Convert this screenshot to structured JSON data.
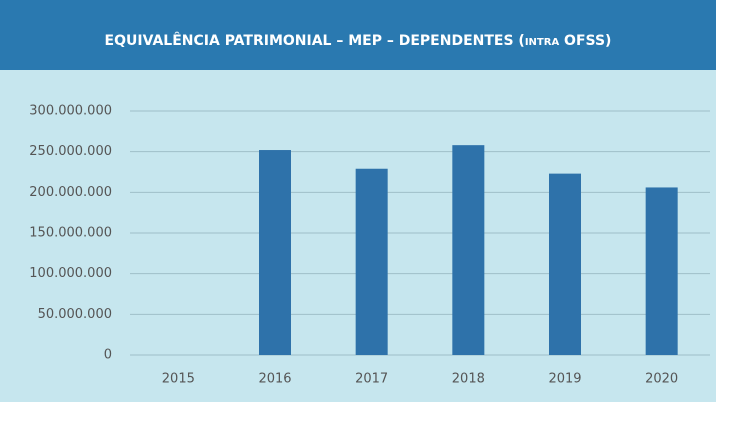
{
  "chart_data": {
    "type": "bar",
    "title": "EQUIVALÊNCIA PATRIMONIAL – MEP – DEPENDENTES (intra OFSS)",
    "categories": [
      "2015",
      "2016",
      "2017",
      "2018",
      "2019",
      "2020"
    ],
    "values": [
      0,
      252000000,
      229000000,
      258000000,
      223000000,
      206000000
    ],
    "color": "#2e72aa",
    "ylim": [
      0,
      300000000
    ],
    "yticks": [
      0,
      {
        "value": 50000000,
        "label": "50.000.000"
      },
      {
        "value": 100000000,
        "label": "100.000.000"
      },
      {
        "value": 150000000,
        "label": "150.000.000"
      },
      {
        "value": 200000000,
        "label": "200.000.000"
      },
      {
        "value": 250000000,
        "label": "250.000.000"
      },
      {
        "value": 300000000,
        "label": "300.000.000"
      }
    ],
    "grid": true
  }
}
